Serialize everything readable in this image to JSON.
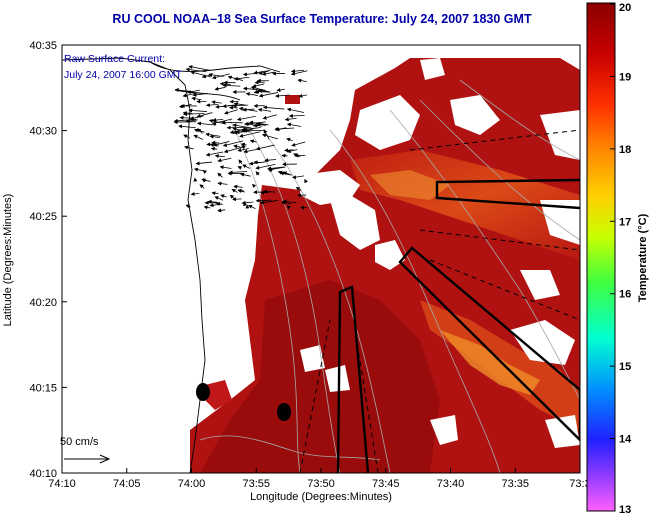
{
  "title": "RU COOL  NOAA–18  Sea Surface Temperature:  July 24, 2007 1830 GMT",
  "current_legend": {
    "line1": "Raw Surface Current:",
    "line2": "July 24, 2007 16:00 GMT"
  },
  "scale_label": "50 cm/s",
  "x_axis": {
    "label": "Longitude (Degrees:Minutes)",
    "ticks": [
      "74:10",
      "74:05",
      "74:00",
      "73:55",
      "73:50",
      "73:45",
      "73:40",
      "73:35",
      "73:3"
    ]
  },
  "y_axis": {
    "label": "Latitude (Degrees:Minutes)",
    "ticks": [
      "40:35",
      "40:30",
      "40:25",
      "40:20",
      "40:15",
      "40:10"
    ]
  },
  "colorbar": {
    "label": "Temperature (°C)",
    "ticks": [
      "20",
      "19",
      "18",
      "17",
      "16",
      "15",
      "14",
      "13"
    ],
    "range": [
      13,
      20
    ]
  },
  "colors": {
    "sst_warm": "#b01010",
    "sst_dark": "#8a0808",
    "sst_mid": "#d83010",
    "sst_orange": "#f08020",
    "title_blue": "#0000aa"
  },
  "icons": {
    "vectors": "current-arrow-icon",
    "mooring": "mooring-marker-icon"
  }
}
